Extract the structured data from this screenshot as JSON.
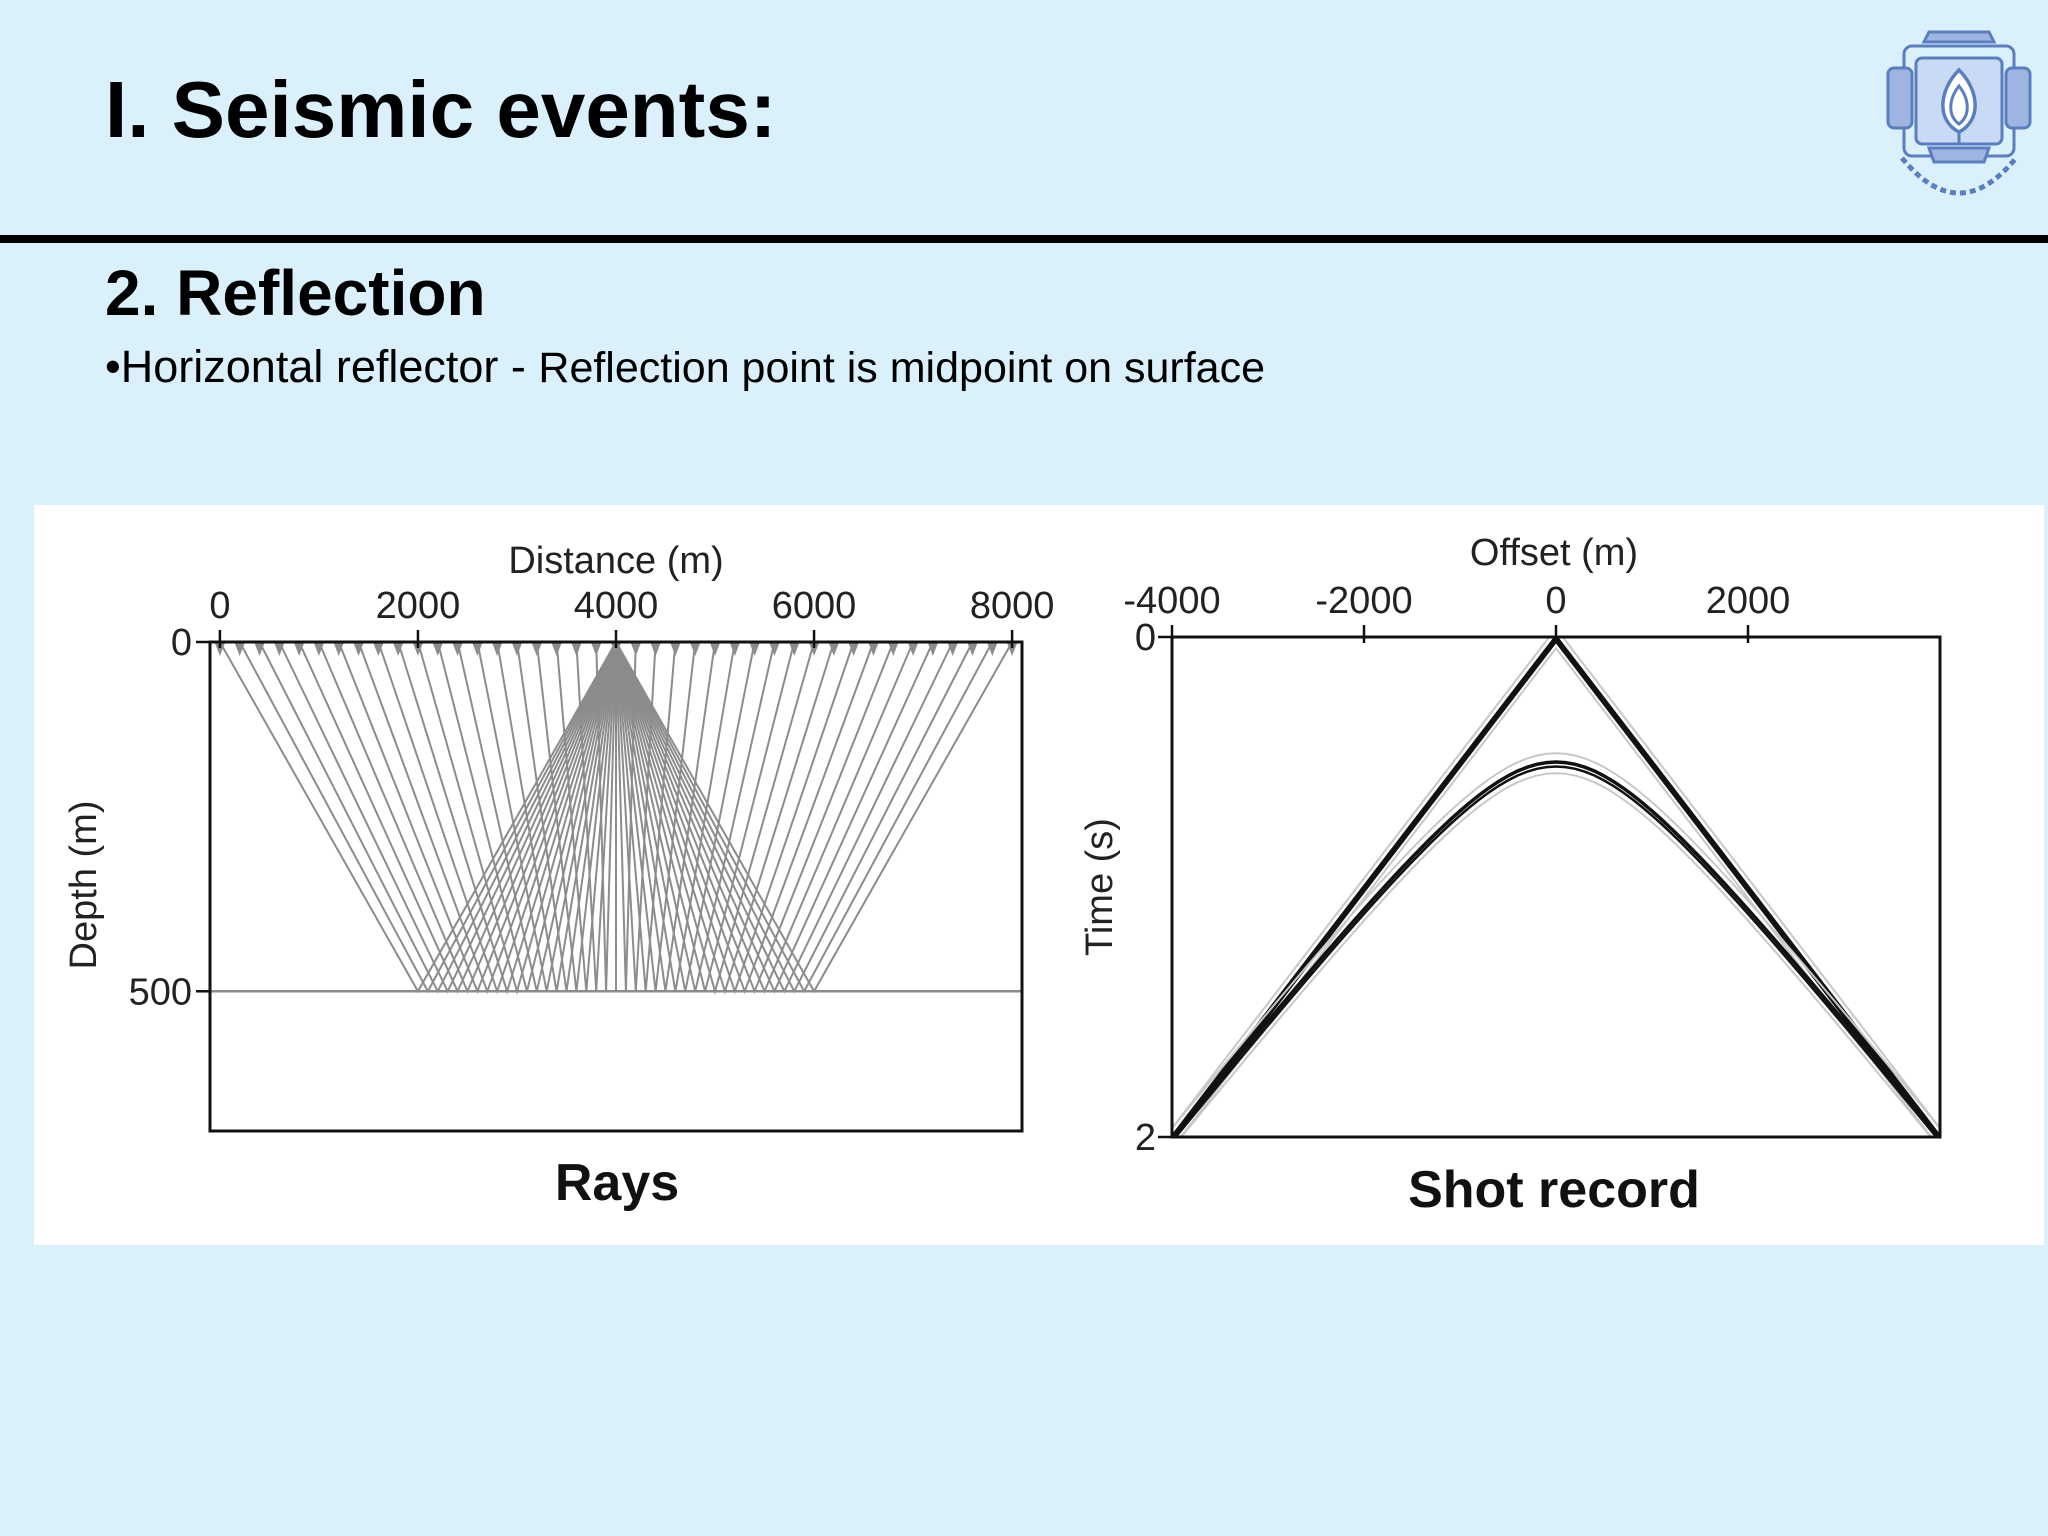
{
  "slide": {
    "title": "I. Seismic events:",
    "section_heading": "2. Reflection",
    "bullet_text": "•Horizontal reflector - ",
    "bullet_detail": "Reflection point is midpoint on surface"
  },
  "colors": {
    "background": "#daf0fb",
    "rule": "#000000",
    "ray": "#8c8c8c",
    "wavelet": "#111111",
    "logo": "#5a7fc0"
  },
  "logo": {
    "icon": "university-seal-icon"
  },
  "chart_data": [
    {
      "type": "diagram",
      "caption": "Rays",
      "xlabel": "Distance (m)",
      "ylabel": "Depth (m)",
      "x_axis_position": "top",
      "xlim": [
        -100,
        8100
      ],
      "ylim": [
        0,
        700
      ],
      "x_ticks": [
        "0",
        "2000",
        "4000",
        "6000",
        "8000"
      ],
      "x_tick_values": [
        0,
        2000,
        4000,
        6000,
        8000
      ],
      "y_ticks": [
        "0",
        "500"
      ],
      "y_tick_values": [
        0,
        500
      ],
      "shot_x": 4000,
      "reflector_depth": 500,
      "receiver_spacing": 200,
      "receiver_range": [
        0,
        8000
      ]
    },
    {
      "type": "line",
      "caption": "Shot record",
      "xlabel": "Offset (m)",
      "ylabel": "Time (s)",
      "x_axis_position": "top",
      "xlim": [
        -4000,
        4000
      ],
      "ylim": [
        0,
        2
      ],
      "x_ticks": [
        "-4000",
        "-2000",
        "0",
        "2000"
      ],
      "x_tick_values": [
        -4000,
        -2000,
        0,
        2000
      ],
      "y_ticks": [
        "0",
        "2"
      ],
      "y_tick_values": [
        0,
        2
      ],
      "series": [
        {
          "values": [
            {
              "x": -4000,
              "t": 2.0
            },
            {
              "x": 0,
              "t": 0.0
            },
            {
              "x": 4000,
              "t": 2.0
            }
          ]
        },
        {
          "values": [
            {
              "x": -4000,
              "t": 2.0
            },
            {
              "x": -2000,
              "t": 1.12
            },
            {
              "x": 0,
              "t": 0.5
            },
            {
              "x": 2000,
              "t": 1.12
            },
            {
              "x": 4000,
              "t": 2.0
            }
          ]
        }
      ]
    }
  ]
}
